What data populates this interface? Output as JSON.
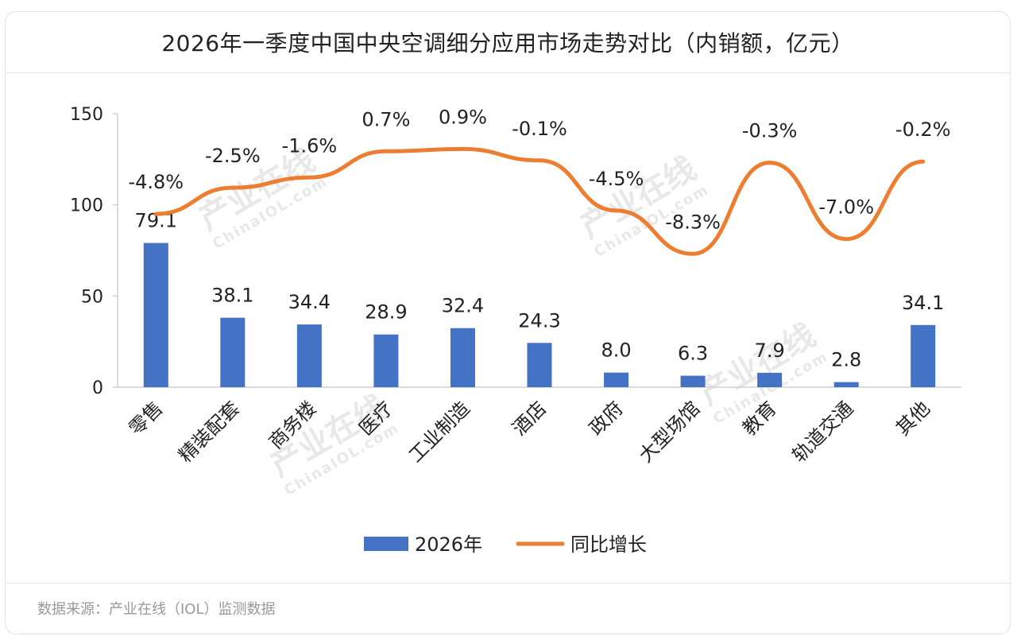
{
  "header": {
    "title": "2026年一季度中国中央空调细分应用市场走势对比（内销额，亿元）"
  },
  "footer": {
    "source": "数据来源：产业在线（IOL）监测数据"
  },
  "watermark": {
    "brand": "产业在线",
    "site": "ChinaIOL.com"
  },
  "chart_data": {
    "type": "bar",
    "title": "2026年一季度中国中央空调细分应用市场走势对比（内销额，亿元）",
    "categories": [
      "零售",
      "精装配套",
      "商务楼",
      "医疗",
      "工业制造",
      "酒店",
      "政府",
      "大型场馆",
      "教育",
      "轨道交通",
      "其他"
    ],
    "series": [
      {
        "name": "2026年",
        "type": "bar",
        "color": "#4472C4",
        "values": [
          79.1,
          38.1,
          34.4,
          28.9,
          32.4,
          24.3,
          8.0,
          6.3,
          7.9,
          2.8,
          34.1
        ],
        "labels": [
          "79.1",
          "38.1",
          "34.4",
          "28.9",
          "32.4",
          "24.3",
          "8.0",
          "6.3",
          "7.9",
          "2.8",
          "34.1"
        ]
      },
      {
        "name": "同比增长",
        "type": "line",
        "color": "#ED7D31",
        "values": [
          -4.8,
          -2.5,
          -1.6,
          0.7,
          0.9,
          -0.1,
          -4.5,
          -8.3,
          -0.3,
          -7.0,
          -0.2
        ],
        "labels": [
          "-4.8%",
          "-2.5%",
          "-1.6%",
          "0.7%",
          "0.9%",
          "-0.1%",
          "-4.5%",
          "-8.3%",
          "-0.3%",
          "-7.0%",
          "-0.2%"
        ]
      }
    ],
    "ylim": [
      0,
      150
    ],
    "yticks": [
      0,
      50,
      100,
      150
    ],
    "y2lim": [
      -20,
      4
    ],
    "grid": false,
    "legend": "bottom"
  }
}
